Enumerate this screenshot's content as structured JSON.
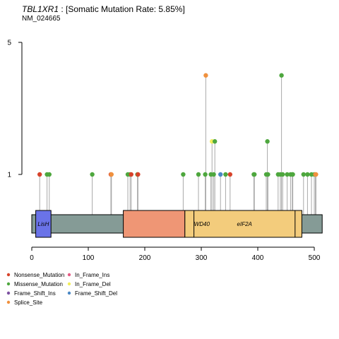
{
  "header": {
    "gene": "TBL1XR1",
    "rate_text": " : [Somatic Mutation Rate: 5.85%]",
    "transcript": "NM_024665"
  },
  "colors": {
    "Nonsense_Mutation": "#d7432b",
    "Missense_Mutation": "#4ea73e",
    "Frame_Shift_Ins": "#7d51a1",
    "Splice_Site": "#f0913e",
    "In_Frame_Ins": "#e65d86",
    "In_Frame_Del": "#f2ee5a",
    "Frame_Shift_Del": "#4a88c5"
  },
  "chart_data": {
    "type": "lollipop",
    "protein_length": 514,
    "x_range": [
      0,
      514
    ],
    "x_ticks": [
      "0",
      "100",
      "200",
      "300",
      "400",
      "500"
    ],
    "y_ticks": [
      "1",
      "5"
    ],
    "backbone_color": "#859b96",
    "domains": [
      {
        "name": "LisH",
        "start": 7,
        "end": 34,
        "color": "#6a73e8"
      },
      {
        "name": "",
        "start": 162,
        "end": 271,
        "color": "#ef9675"
      },
      {
        "name": "WD40",
        "start": 271,
        "end": 478,
        "color": "#f3cc7c"
      },
      {
        "name": "eIF2A",
        "start": 287,
        "end": 466,
        "color": "#f3cc7c"
      }
    ],
    "mutations": [
      {
        "pos": 14,
        "count": 1,
        "type": "Nonsense_Mutation"
      },
      {
        "pos": 27,
        "count": 1,
        "type": "Missense_Mutation"
      },
      {
        "pos": 31,
        "count": 1,
        "type": "Missense_Mutation"
      },
      {
        "pos": 107,
        "count": 1,
        "type": "Missense_Mutation"
      },
      {
        "pos": 140,
        "count": 1,
        "type": "Nonsense_Mutation"
      },
      {
        "pos": 141,
        "count": 1,
        "type": "Splice_Site"
      },
      {
        "pos": 170,
        "count": 1,
        "type": "Missense_Mutation"
      },
      {
        "pos": 174,
        "count": 1,
        "type": "Missense_Mutation"
      },
      {
        "pos": 176,
        "count": 1,
        "type": "Nonsense_Mutation"
      },
      {
        "pos": 187,
        "count": 1,
        "type": "Missense_Mutation"
      },
      {
        "pos": 188,
        "count": 1,
        "type": "Nonsense_Mutation"
      },
      {
        "pos": 268,
        "count": 1,
        "type": "Missense_Mutation"
      },
      {
        "pos": 295,
        "count": 1,
        "type": "Missense_Mutation"
      },
      {
        "pos": 307,
        "count": 1,
        "type": "Missense_Mutation"
      },
      {
        "pos": 308,
        "count": 4,
        "type": "Splice_Site"
      },
      {
        "pos": 317,
        "count": 1,
        "type": "Missense_Mutation"
      },
      {
        "pos": 319,
        "count": 2,
        "type": "In_Frame_Del"
      },
      {
        "pos": 322,
        "count": 1,
        "type": "Missense_Mutation"
      },
      {
        "pos": 324,
        "count": 2,
        "type": "Missense_Mutation"
      },
      {
        "pos": 334,
        "count": 1,
        "type": "Frame_Shift_Del"
      },
      {
        "pos": 343,
        "count": 1,
        "type": "Missense_Mutation"
      },
      {
        "pos": 351,
        "count": 1,
        "type": "Nonsense_Mutation"
      },
      {
        "pos": 393,
        "count": 1,
        "type": "Missense_Mutation"
      },
      {
        "pos": 394,
        "count": 1,
        "type": "Missense_Mutation"
      },
      {
        "pos": 415,
        "count": 1,
        "type": "Missense_Mutation"
      },
      {
        "pos": 417,
        "count": 2,
        "type": "Missense_Mutation"
      },
      {
        "pos": 418,
        "count": 1,
        "type": "Missense_Mutation"
      },
      {
        "pos": 436,
        "count": 1,
        "type": "Missense_Mutation"
      },
      {
        "pos": 440,
        "count": 1,
        "type": "Missense_Mutation"
      },
      {
        "pos": 442,
        "count": 4,
        "type": "Missense_Mutation"
      },
      {
        "pos": 444,
        "count": 1,
        "type": "Missense_Mutation"
      },
      {
        "pos": 452,
        "count": 1,
        "type": "Missense_Mutation"
      },
      {
        "pos": 458,
        "count": 1,
        "type": "Missense_Mutation"
      },
      {
        "pos": 461,
        "count": 1,
        "type": "Missense_Mutation"
      },
      {
        "pos": 462,
        "count": 1,
        "type": "Missense_Mutation"
      },
      {
        "pos": 481,
        "count": 1,
        "type": "Missense_Mutation"
      },
      {
        "pos": 488,
        "count": 1,
        "type": "Missense_Mutation"
      },
      {
        "pos": 495,
        "count": 1,
        "type": "Missense_Mutation"
      },
      {
        "pos": 500,
        "count": 1,
        "type": "Missense_Mutation"
      },
      {
        "pos": 502,
        "count": 1,
        "type": "Splice_Site"
      },
      {
        "pos": 503,
        "count": 1,
        "type": "Splice_Site"
      }
    ],
    "legend": [
      {
        "label": "Nonsense_Mutation",
        "type": "Nonsense_Mutation"
      },
      {
        "label": "In_Frame_Ins",
        "type": "In_Frame_Ins"
      },
      {
        "label": "Missense_Mutation",
        "type": "Missense_Mutation"
      },
      {
        "label": "In_Frame_Del",
        "type": "In_Frame_Del"
      },
      {
        "label": "Frame_Shift_Ins",
        "type": "Frame_Shift_Ins"
      },
      {
        "label": "Frame_Shift_Del",
        "type": "Frame_Shift_Del"
      },
      {
        "label": "Splice_Site",
        "type": "Splice_Site"
      }
    ]
  }
}
